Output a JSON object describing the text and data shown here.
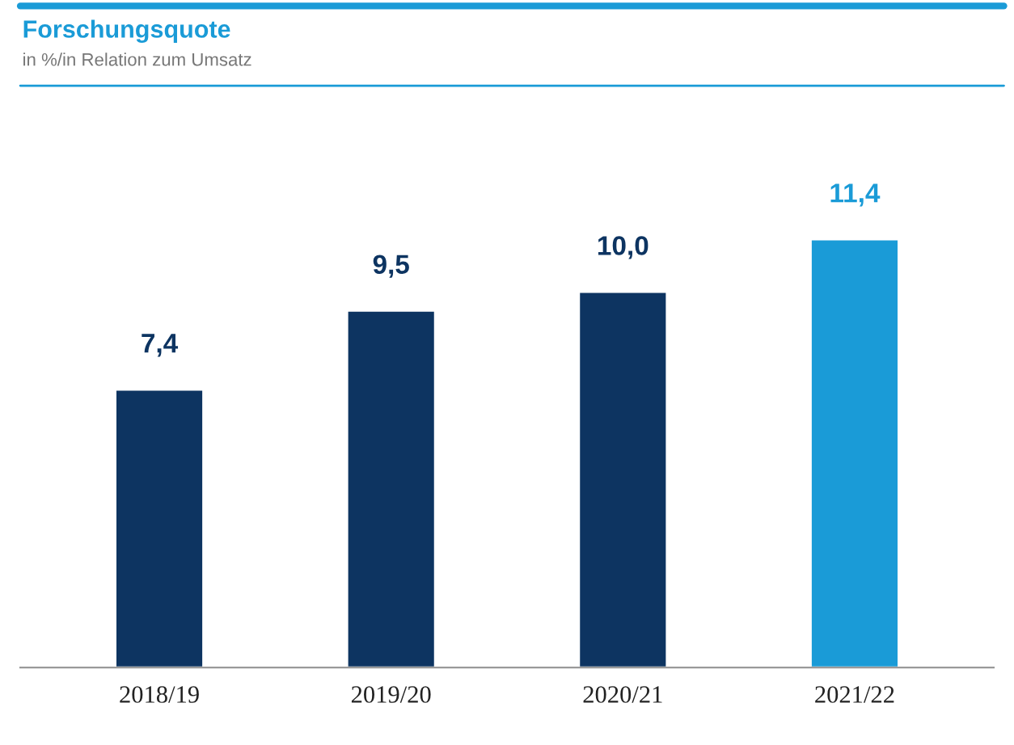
{
  "chart_data": {
    "type": "bar",
    "title": "Forschungsquote",
    "subtitle": "in %/in Relation zum Umsatz",
    "categories": [
      "2018/19",
      "2019/20",
      "2020/21",
      "2021/22"
    ],
    "values": [
      7.4,
      9.5,
      10.0,
      11.4
    ],
    "colors": [
      "#0d3461",
      "#0d3461",
      "#0d3461",
      "#1a9bd7"
    ],
    "value_labels": [
      "7,4",
      "9,5",
      "10,0",
      "11,4"
    ],
    "grid": false,
    "legend": false
  }
}
